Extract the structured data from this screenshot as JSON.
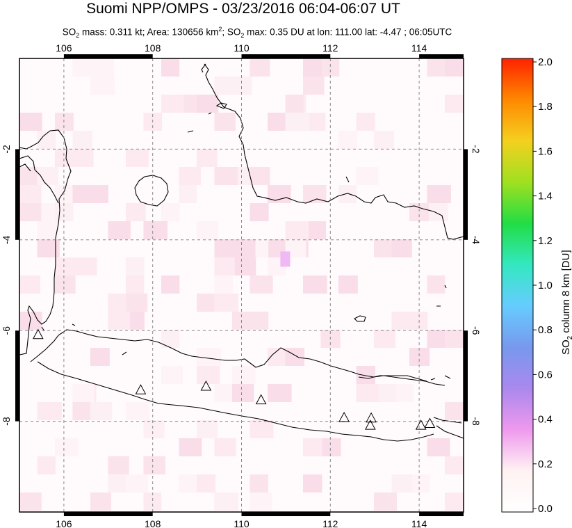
{
  "title": "Suomi NPP/OMPS - 03/23/2016 06:04-06:07 UT",
  "subtitle": {
    "so2_mass_label": "SO",
    "so2_mass_sub": "2",
    "so2_mass_text": " mass: 0.311 kt; Area: 130656 km",
    "area_sup": "2",
    "so2_max_label": "; SO",
    "so2_max_sub": "2",
    "so2_max_text": " max: 0.35 DU at lon: 111.00 lat: -4.47 ; 06:05UTC"
  },
  "map": {
    "lon_ticks": [
      "106",
      "108",
      "110",
      "112",
      "114"
    ],
    "lat_ticks": [
      "-2",
      "-4",
      "-6",
      "-8"
    ],
    "lon_range": [
      105,
      115
    ],
    "lat_range": [
      -10,
      0
    ],
    "grid": "dashed",
    "volcano_markers": [
      {
        "lon": 105.42,
        "lat": -6.1
      },
      {
        "lon": 107.73,
        "lat": -7.32
      },
      {
        "lon": 109.2,
        "lat": -7.24
      },
      {
        "lon": 110.44,
        "lat": -7.54
      },
      {
        "lon": 112.31,
        "lat": -7.93
      },
      {
        "lon": 112.92,
        "lat": -7.94
      },
      {
        "lon": 112.9,
        "lat": -8.1
      },
      {
        "lon": 114.04,
        "lat": -8.1
      },
      {
        "lon": 114.24,
        "lat": -8.06
      }
    ]
  },
  "colorbar": {
    "label_main": "SO",
    "label_sub": "2",
    "label_rest": " column 8 km [DU]",
    "ticks": [
      "2.0",
      "1.8",
      "1.6",
      "1.4",
      "1.2",
      "1.0",
      "0.8",
      "0.6",
      "0.4",
      "0.2",
      "0.0"
    ],
    "colors": [
      "#ff2200",
      "#ff8800",
      "#f4d020",
      "#a0e020",
      "#22dd44",
      "#33e8c0",
      "#66ccff",
      "#7799ee",
      "#aa88ee",
      "#ee99ee",
      "#fff2f2",
      "#ffffff"
    ]
  }
}
